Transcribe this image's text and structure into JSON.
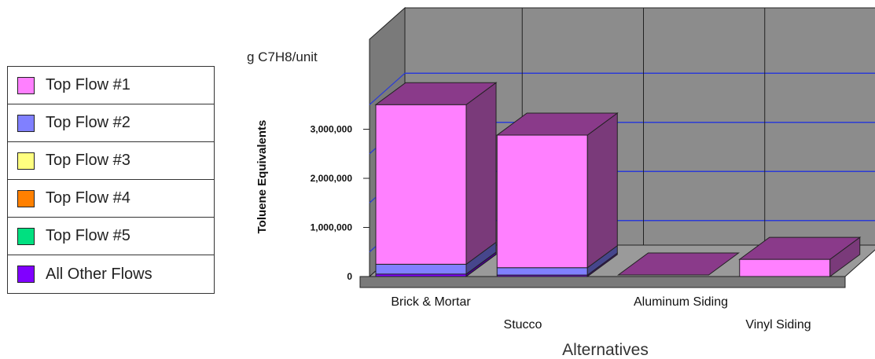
{
  "chart_data": {
    "type": "bar",
    "stacked": true,
    "three_d": true,
    "title": "",
    "unit_label": "g C7H8/unit",
    "ylabel": "Toluene Equivalents",
    "xlabel": "Alternatives",
    "ylim": [
      0,
      4000000
    ],
    "yticks": [
      "0",
      "1,000,000",
      "2,000,000",
      "3,000,000"
    ],
    "categories": [
      "Brick & Mortar",
      "Stucco",
      "Aluminum Siding",
      "Vinyl Siding"
    ],
    "series": [
      {
        "name": "Top Flow #1",
        "color": "#ff80ff",
        "values": [
          3250000,
          2700000,
          0,
          350000
        ]
      },
      {
        "name": "Top Flow #2",
        "color": "#8080ff",
        "values": [
          200000,
          150000,
          0,
          0
        ]
      },
      {
        "name": "Top Flow #3",
        "color": "#ffff80",
        "values": [
          0,
          0,
          0,
          0
        ]
      },
      {
        "name": "Top Flow #4",
        "color": "#ff8000",
        "values": [
          0,
          0,
          0,
          0
        ]
      },
      {
        "name": "Top Flow #5",
        "color": "#00e080",
        "values": [
          0,
          0,
          0,
          0
        ]
      },
      {
        "name": "All Other Flows",
        "color": "#8000ff",
        "values": [
          50000,
          30000,
          0,
          0
        ]
      }
    ],
    "grid": true,
    "legend": "left"
  }
}
